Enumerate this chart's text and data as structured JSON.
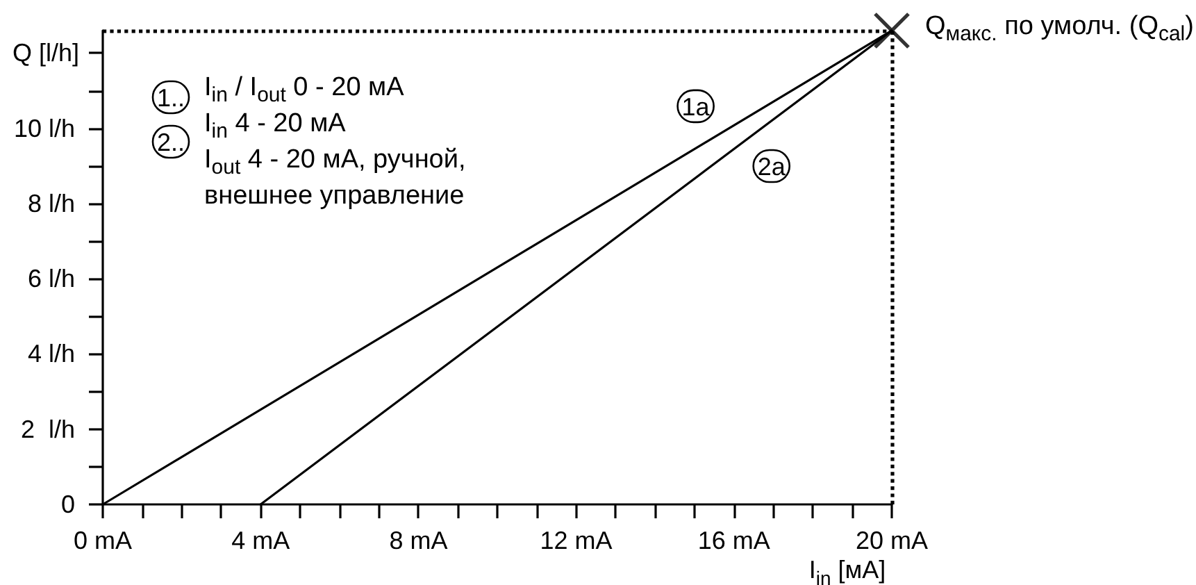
{
  "chart_data": {
    "type": "line",
    "xlabel": "I$_{in}$ [мА]",
    "ylabel": "Q [l/h]",
    "annotations": [
      "1..",
      "I$_{in}$ / I$_{out}$ 0 - 20 мА",
      "2..",
      "I$_{in}$ 4 - 20 мА\nI$_{out}$ 4 - 20 мА, ручной,\nвнешнее управление",
      {
        "text": "Q$_{макс.}$ по умолч. (Q$_{cal}$)",
        "x": 20,
        "y": 12.6
      }
    ],
    "series": [
      {
        "name": "1a",
        "color": "#000000",
        "x": [
          0,
          20
        ],
        "values": [
          0,
          12.6
        ]
      },
      {
        "name": "2a",
        "color": "#000000",
        "x": [
          4,
          20
        ],
        "values": [
          0,
          12.6
        ]
      },
      {
        "type": "scatter",
        "marker": "cross",
        "color": "#000000",
        "x": [
          20
        ],
        "values": [
          12.6
        ]
      }
    ],
    "xlim": [
      0,
      20
    ],
    "xticks": [
      {
        "value": 0,
        "label": "0 mA"
      },
      {
        "value": 1,
        "label": null
      },
      {
        "value": 2,
        "label": null
      },
      {
        "value": 3,
        "label": null
      },
      {
        "value": 4,
        "label": "4 mA"
      },
      {
        "value": 5,
        "label": null
      },
      {
        "value": 6,
        "label": null
      },
      {
        "value": 7,
        "label": null
      },
      {
        "value": 8,
        "label": "8 mA"
      },
      {
        "value": 9,
        "label": null
      },
      {
        "value": 10,
        "label": null
      },
      {
        "value": 11,
        "label": null
      },
      {
        "value": 12,
        "label": "12 mA"
      },
      {
        "value": 13,
        "label": null
      },
      {
        "value": 14,
        "label": null
      },
      {
        "value": 15,
        "label": null
      },
      {
        "value": 16,
        "label": "16 mA"
      },
      {
        "value": 17,
        "label": null
      },
      {
        "value": 18,
        "label": null
      },
      {
        "value": 19,
        "label": null
      },
      {
        "value": 20,
        "label": "20 mA"
      }
    ],
    "ylim": [
      0,
      12.6
    ],
    "yticks": [
      0,
      {
        "value": 1,
        "label": null
      },
      {
        "value": 2,
        "label": "2  l/h"
      },
      {
        "value": 3,
        "label": null
      },
      {
        "value": 4,
        "label": "4 l/h"
      },
      {
        "value": 5,
        "label": null
      },
      {
        "value": 6,
        "label": "6 l/h"
      },
      {
        "value": 7,
        "label": null
      },
      {
        "value": 8,
        "label": "8 l/h"
      },
      {
        "value": 9,
        "label": null
      },
      {
        "value": 10,
        "label": "10 l/h"
      },
      {
        "value": 11,
        "label": null
      },
      {
        "value": 12,
        "label": null
      }
    ],
    "ref_lines": [
      {
        "axis": "y",
        "value": 12.6,
        "line_style": "dotted",
        "color": "#000000"
      },
      {
        "axis": "x",
        "value": 20,
        "line_style": "dotted",
        "color": "#000000"
      }
    ],
    "line_style": "solid"
  }
}
